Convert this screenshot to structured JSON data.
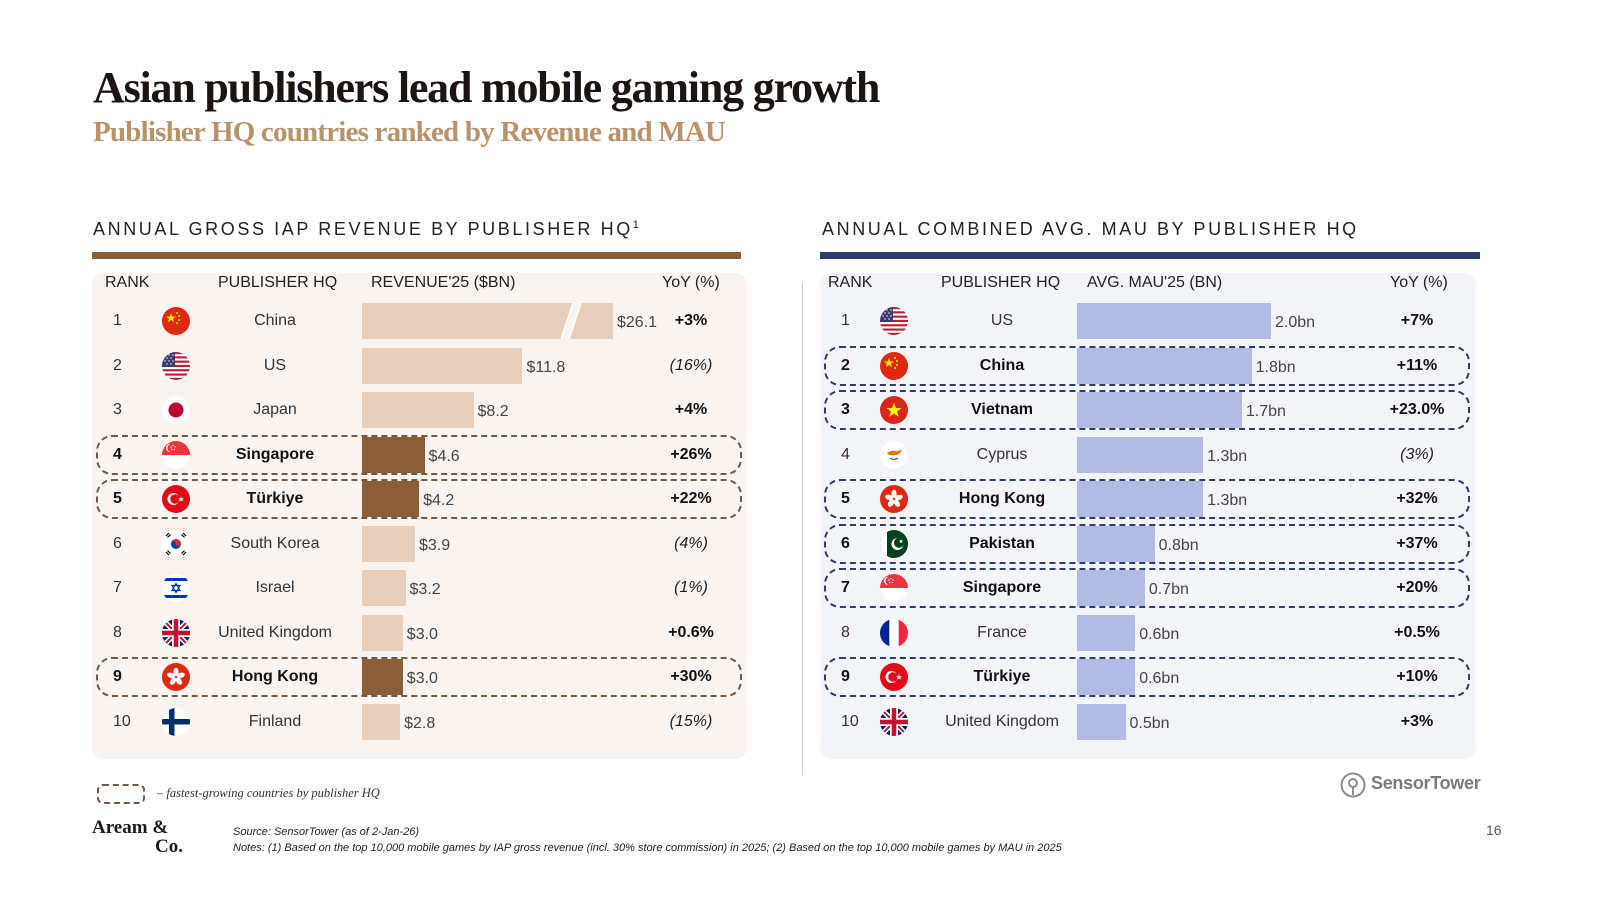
{
  "title": "Asian publishers lead mobile gaming growth",
  "subtitle": "Publisher HQ countries ranked by Revenue and MAU",
  "colors": {
    "revenue_accent": "#8a5e38",
    "revenue_bar": "#e8cfbb",
    "revenue_bar_highlight": "#8a5e38",
    "revenue_panel": "#faf4f1",
    "mau_accent": "#2e3c6a",
    "mau_bar": "#b1bbe3",
    "mau_panel": "#f3f4f8"
  },
  "chart_data": [
    {
      "type": "bar",
      "orientation": "horizontal",
      "title": "ANNUAL GROSS IAP REVENUE BY PUBLISHER HQ",
      "title_footnote": "1",
      "headers": {
        "rank": "RANK",
        "country": "PUBLISHER HQ",
        "value": "REVENUE'25 ($BN)",
        "yoy": "YoY (%)"
      },
      "axis_break_above": 13,
      "rows": [
        {
          "rank": "1",
          "country": "China",
          "flag": "china-flag",
          "value": 26.1,
          "label": "$26.1",
          "yoy": "+3%",
          "highlight": false
        },
        {
          "rank": "2",
          "country": "US",
          "flag": "us-flag",
          "value": 11.8,
          "label": "$11.8",
          "yoy": "(16%)",
          "highlight": false
        },
        {
          "rank": "3",
          "country": "Japan",
          "flag": "japan-flag",
          "value": 8.2,
          "label": "$8.2",
          "yoy": "+4%",
          "highlight": false
        },
        {
          "rank": "4",
          "country": "Singapore",
          "flag": "singapore-flag",
          "value": 4.6,
          "label": "$4.6",
          "yoy": "+26%",
          "highlight": true
        },
        {
          "rank": "5",
          "country": "Türkiye",
          "flag": "turkiye-flag",
          "value": 4.2,
          "label": "$4.2",
          "yoy": "+22%",
          "highlight": true
        },
        {
          "rank": "6",
          "country": "South Korea",
          "flag": "south-korea-flag",
          "value": 3.9,
          "label": "$3.9",
          "yoy": "(4%)",
          "highlight": false
        },
        {
          "rank": "7",
          "country": "Israel",
          "flag": "israel-flag",
          "value": 3.2,
          "label": "$3.2",
          "yoy": "(1%)",
          "highlight": false
        },
        {
          "rank": "8",
          "country": "United Kingdom",
          "flag": "uk-flag",
          "value": 3.0,
          "label": "$3.0",
          "yoy": "+0.6%",
          "highlight": false
        },
        {
          "rank": "9",
          "country": "Hong Kong",
          "flag": "hong-kong-flag",
          "value": 3.0,
          "label": "$3.0",
          "yoy": "+30%",
          "highlight": true
        },
        {
          "rank": "10",
          "country": "Finland",
          "flag": "finland-flag",
          "value": 2.8,
          "label": "$2.8",
          "yoy": "(15%)",
          "highlight": false
        }
      ]
    },
    {
      "type": "bar",
      "orientation": "horizontal",
      "title": "ANNUAL COMBINED AVG. MAU BY PUBLISHER HQ",
      "headers": {
        "rank": "RANK",
        "country": "PUBLISHER HQ",
        "value": "AVG. MAU'25 (BN)",
        "yoy": "YoY (%)"
      },
      "rows": [
        {
          "rank": "1",
          "country": "US",
          "flag": "us-flag",
          "value": 2.0,
          "label": "2.0bn",
          "yoy": "+7%",
          "highlight": false
        },
        {
          "rank": "2",
          "country": "China",
          "flag": "china-flag",
          "value": 1.8,
          "label": "1.8bn",
          "yoy": "+11%",
          "highlight": true
        },
        {
          "rank": "3",
          "country": "Vietnam",
          "flag": "vietnam-flag",
          "value": 1.7,
          "label": "1.7bn",
          "yoy": "+23.0%",
          "highlight": true
        },
        {
          "rank": "4",
          "country": "Cyprus",
          "flag": "cyprus-flag",
          "value": 1.3,
          "label": "1.3bn",
          "yoy": "(3%)",
          "highlight": false
        },
        {
          "rank": "5",
          "country": "Hong Kong",
          "flag": "hong-kong-flag",
          "value": 1.3,
          "label": "1.3bn",
          "yoy": "+32%",
          "highlight": true
        },
        {
          "rank": "6",
          "country": "Pakistan",
          "flag": "pakistan-flag",
          "value": 0.8,
          "label": "0.8bn",
          "yoy": "+37%",
          "highlight": true
        },
        {
          "rank": "7",
          "country": "Singapore",
          "flag": "singapore-flag",
          "value": 0.7,
          "label": "0.7bn",
          "yoy": "+20%",
          "highlight": true
        },
        {
          "rank": "8",
          "country": "France",
          "flag": "france-flag",
          "value": 0.6,
          "label": "0.6bn",
          "yoy": "+0.5%",
          "highlight": false
        },
        {
          "rank": "9",
          "country": "Türkiye",
          "flag": "turkiye-flag",
          "value": 0.6,
          "label": "0.6bn",
          "yoy": "+10%",
          "highlight": true
        },
        {
          "rank": "10",
          "country": "United Kingdom",
          "flag": "uk-flag",
          "value": 0.5,
          "label": "0.5bn",
          "yoy": "+3%",
          "highlight": false
        }
      ]
    }
  ],
  "legend": {
    "text": "– fastest-growing countries by publisher HQ"
  },
  "footer": {
    "logo_line1": "Aream &",
    "logo_line2": "Co.",
    "source": "Source: SensorTower (as of 2-Jan-26)",
    "notes": "Notes: (1) Based on the top 10,000 mobile games by IAP gross revenue (incl. 30% store commission) in 2025; (2) Based on the top 10,000 mobile games by MAU in 2025",
    "page_number": "16",
    "sensor_tower": "SensorTower"
  }
}
